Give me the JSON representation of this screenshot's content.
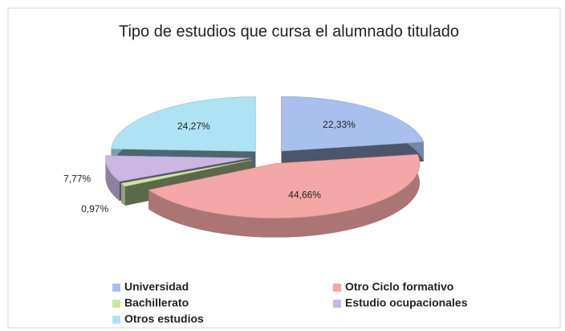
{
  "chart_data": {
    "type": "pie3d",
    "title": "Tipo de estudios que cursa el alumnado titulado",
    "categories": [
      "Universidad",
      "Otro Ciclo formativo",
      "Bachillerato",
      "Estudio ocupacionales",
      "Otros estudios"
    ],
    "values": [
      22.33,
      44.66,
      0.97,
      7.77,
      24.27
    ],
    "value_labels": [
      "22,33%",
      "44,66%",
      "0,97%",
      "7,77%",
      "24,27%"
    ],
    "colors": [
      "#a9c0ee",
      "#f4a7a7",
      "#cbe8a4",
      "#cbb7e2",
      "#aee3f3"
    ],
    "legend": "bottom"
  }
}
